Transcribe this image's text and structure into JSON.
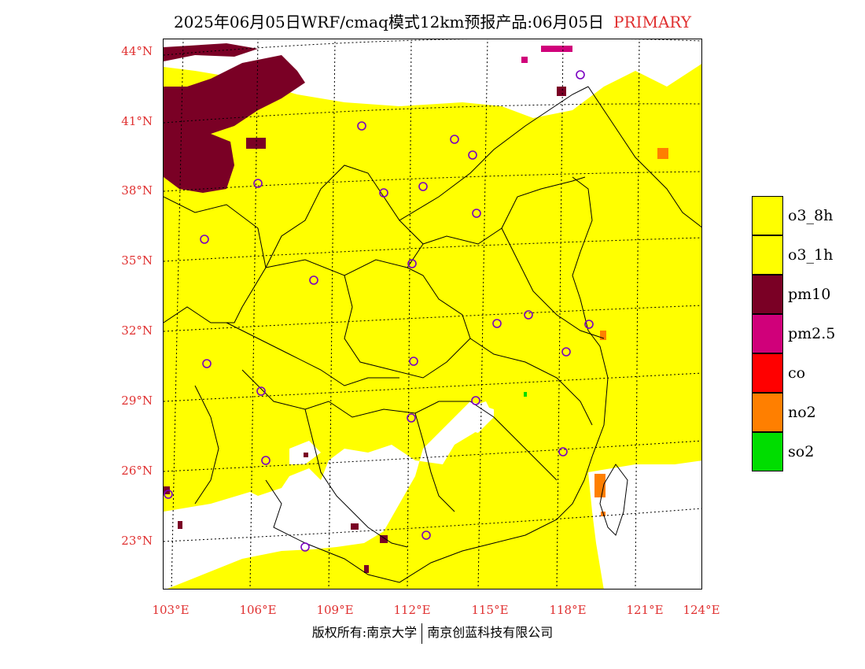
{
  "header": {
    "title": "2025年06月05日WRF/cmaq模式12km预报产品:06月05日",
    "tag": "PRIMARY"
  },
  "axes": {
    "lat_labels": [
      "44°N",
      "41°N",
      "38°N",
      "35°N",
      "32°N",
      "29°N",
      "26°N",
      "23°N"
    ],
    "lon_labels": [
      "103°E",
      "106°E",
      "109°E",
      "112°E",
      "115°E",
      "118°E",
      "121°E",
      "124°E"
    ]
  },
  "legend": {
    "items": [
      {
        "label": "o3_8h",
        "color": "#ffff00"
      },
      {
        "label": "o3_1h",
        "color": "#ffff00"
      },
      {
        "label": "pm10",
        "color": "#7a0025"
      },
      {
        "label": "pm2.5",
        "color": "#d0007a"
      },
      {
        "label": "co",
        "color": "#ff0000"
      },
      {
        "label": "no2",
        "color": "#ff7f00"
      },
      {
        "label": "so2",
        "color": "#00dd00"
      }
    ]
  },
  "footer": {
    "left": "版权所有:南京大学",
    "right": "南京创蓝科技有限公司"
  }
}
